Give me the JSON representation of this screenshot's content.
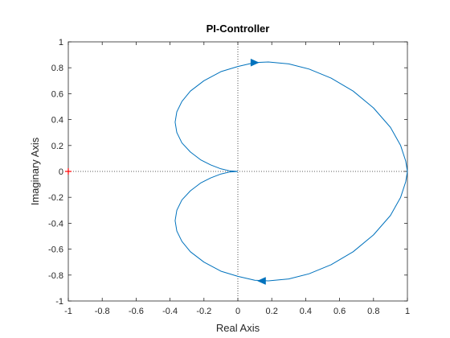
{
  "chart_data": {
    "type": "line",
    "title": "PI-Controller",
    "xlabel": "Real Axis",
    "ylabel": "Imaginary Axis",
    "xlim": [
      -1,
      1
    ],
    "ylim": [
      -1,
      1
    ],
    "grid": false,
    "xticks": [
      "-1",
      "-0.8",
      "-0.6",
      "-0.4",
      "-0.2",
      "0",
      "0.2",
      "0.4",
      "0.6",
      "0.8",
      "1"
    ],
    "yticks": [
      "1",
      "0.8",
      "0.6",
      "0.4",
      "0.2",
      "0",
      "-0.2",
      "-0.4",
      "-0.6",
      "-0.8",
      "-1"
    ],
    "zero_lines": "dotted",
    "critical_point": {
      "x": -1,
      "y": 0,
      "marker": "+",
      "color": "#ff0000"
    },
    "series": [
      {
        "color": "#0072bd",
        "style": "solid",
        "points_upper": [
          [
            0.0,
            0.0
          ],
          [
            -0.05,
            0.005
          ],
          [
            -0.1,
            0.02
          ],
          [
            -0.16,
            0.05
          ],
          [
            -0.22,
            0.09
          ],
          [
            -0.28,
            0.15
          ],
          [
            -0.33,
            0.22
          ],
          [
            -0.36,
            0.3
          ],
          [
            -0.37,
            0.38
          ],
          [
            -0.36,
            0.46
          ],
          [
            -0.33,
            0.54
          ],
          [
            -0.28,
            0.62
          ],
          [
            -0.2,
            0.7
          ],
          [
            -0.1,
            0.77
          ],
          [
            0.0,
            0.81
          ],
          [
            0.1,
            0.84
          ],
          [
            0.18,
            0.845
          ],
          [
            0.3,
            0.83
          ],
          [
            0.42,
            0.79
          ],
          [
            0.55,
            0.72
          ],
          [
            0.68,
            0.62
          ],
          [
            0.8,
            0.49
          ],
          [
            0.9,
            0.34
          ],
          [
            0.96,
            0.2
          ],
          [
            0.99,
            0.08
          ],
          [
            1.0,
            0.0
          ]
        ],
        "arrow_upper": {
          "x": 0.1,
          "y": 0.84,
          "direction": "right"
        },
        "arrow_lower": {
          "x": 0.14,
          "y": -0.845,
          "direction": "left"
        }
      }
    ]
  }
}
